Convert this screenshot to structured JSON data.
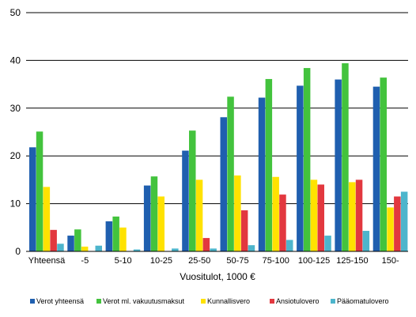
{
  "chart_data": {
    "type": "bar",
    "xlabel": "Vuositulot, 1000 €",
    "ylabel": "",
    "ylim": [
      0,
      50
    ],
    "yticks": [
      0,
      10,
      20,
      30,
      40,
      50
    ],
    "grid": true,
    "legend_position": "bottom",
    "categories": [
      "Yhteensä",
      "-5",
      "5-10",
      "10-25",
      "25-50",
      "50-75",
      "75-100",
      "100-125",
      "125-150",
      "150-"
    ],
    "series": [
      {
        "name": "Verot yhteensä",
        "color": "#1F5FAF",
        "values": [
          21.8,
          3.3,
          6.3,
          13.8,
          21.1,
          28.1,
          32.2,
          34.7,
          36.0,
          34.5
        ]
      },
      {
        "name": "Verot ml. vakuutusmaksut",
        "color": "#43C33D",
        "values": [
          25.1,
          4.6,
          7.3,
          15.7,
          25.3,
          32.4,
          36.1,
          38.4,
          39.4,
          36.4
        ]
      },
      {
        "name": "Kunnallisvero",
        "color": "#FFE200",
        "values": [
          13.5,
          1.0,
          5.0,
          11.5,
          15.0,
          15.9,
          15.6,
          15.0,
          14.5,
          9.2
        ]
      },
      {
        "name": "Ansiotulovero",
        "color": "#E2383F",
        "values": [
          4.5,
          0.0,
          0.0,
          0.0,
          2.8,
          8.6,
          11.9,
          14.0,
          15.0,
          11.5
        ]
      },
      {
        "name": "Pääomatulovero",
        "color": "#4DB5CC",
        "values": [
          1.6,
          1.2,
          0.4,
          0.6,
          0.6,
          1.3,
          2.4,
          3.3,
          4.3,
          12.5
        ]
      }
    ]
  }
}
